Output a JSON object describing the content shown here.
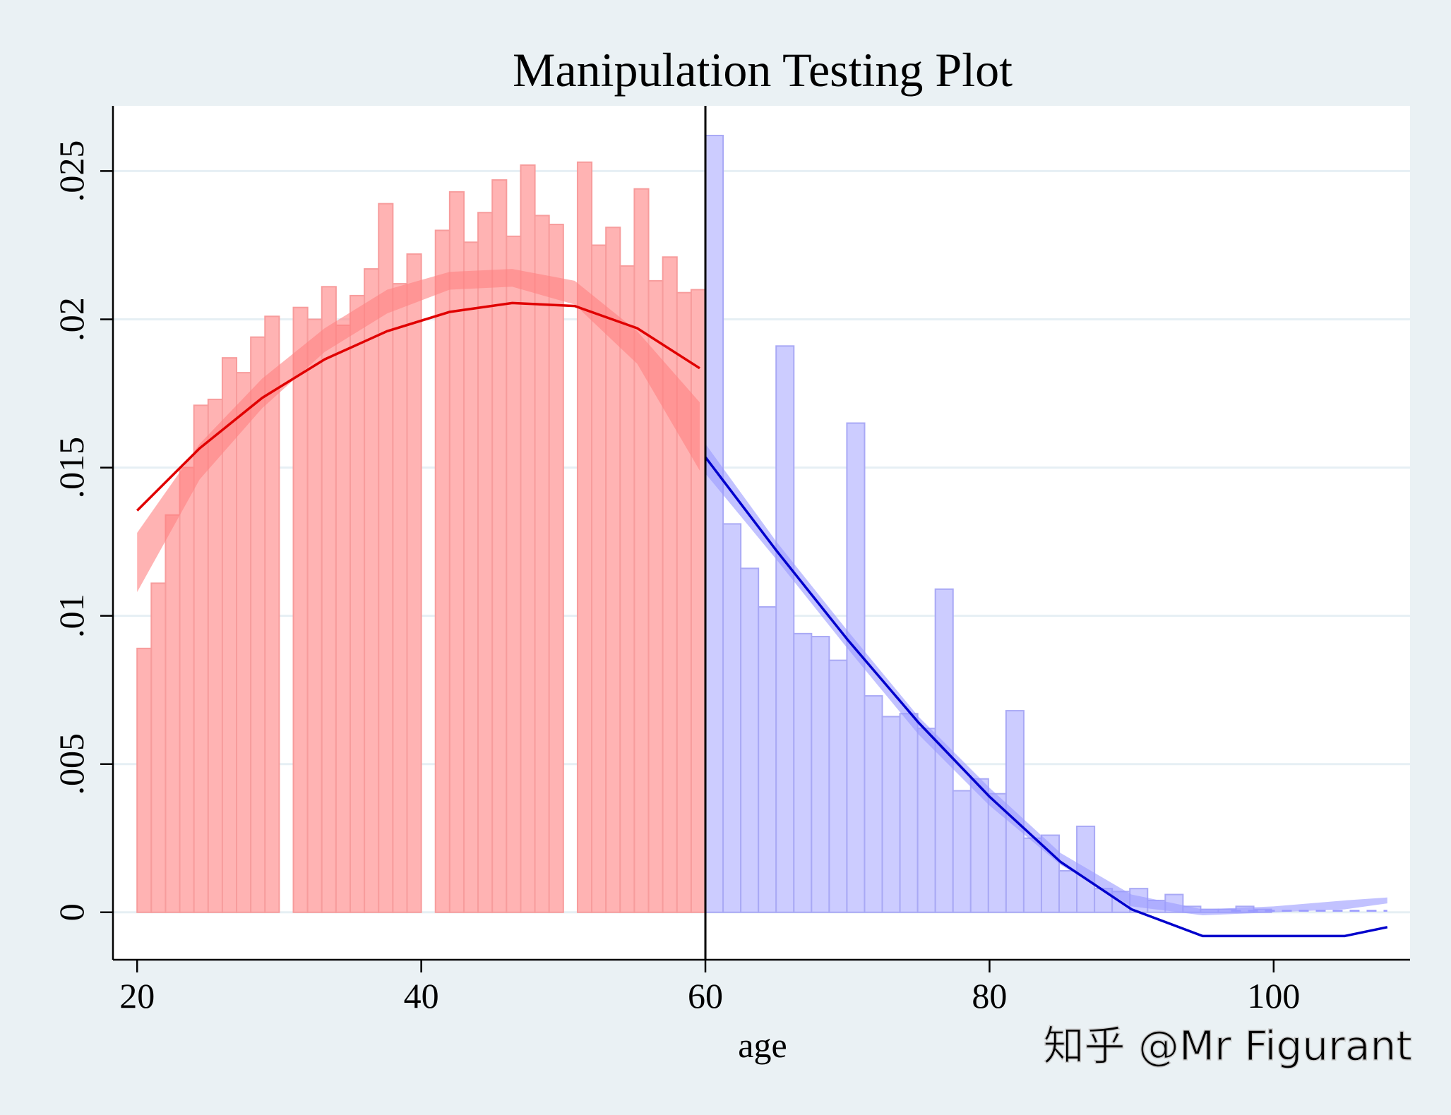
{
  "chart_data": {
    "type": "bar",
    "title": "Manipulation Testing Plot",
    "xlabel": "age",
    "ylabel": "",
    "xlim": [
      18.3,
      109.6
    ],
    "ylim": [
      -0.0016,
      0.0272
    ],
    "cutoff": 60,
    "x_ticks": [
      20,
      40,
      60,
      80,
      100
    ],
    "x_tick_labels": [
      "20",
      "40",
      "60",
      "80",
      "100"
    ],
    "y_ticks": [
      0,
      0.005,
      0.01,
      0.015,
      0.02,
      0.025
    ],
    "y_tick_labels": [
      "0",
      ".005",
      ".01",
      ".015",
      ".02",
      ".025"
    ],
    "grid": true,
    "colors": {
      "left_bar_fill": "#ffb3b3",
      "left_bar_stroke": "#f79c9c",
      "left_band": "#ff8080",
      "left_line": "#e00000",
      "right_bar_fill": "#ccccff",
      "right_bar_stroke": "#a9a9f5",
      "right_band": "#9a9aff",
      "right_line": "#0000cc",
      "grid": "#e6eff4",
      "plot_bg": "#ffffff",
      "outer_bg": "#eaf1f4"
    },
    "series": [
      {
        "side": "left",
        "kind": "histogram",
        "bin_width": 1,
        "x": [
          20,
          21,
          22,
          23,
          24,
          25,
          26,
          27,
          28,
          29,
          30,
          31,
          32,
          33,
          34,
          35,
          36,
          37,
          38,
          39,
          40,
          41,
          42,
          43,
          44,
          45,
          46,
          47,
          48,
          49,
          50,
          51,
          52,
          53,
          54,
          55,
          56,
          57,
          58,
          59
        ],
        "values": [
          0.0089,
          0.0111,
          0.0134,
          0.015,
          0.0171,
          0.0173,
          0.0187,
          0.0182,
          0.0194,
          0.0201,
          0,
          0.0204,
          0.02,
          0.0211,
          0.0198,
          0.0208,
          0.0217,
          0.0239,
          0.0212,
          0.0222,
          0,
          0.023,
          0.0243,
          0.0226,
          0.0236,
          0.0247,
          0.0228,
          0.0252,
          0.0235,
          0.0232,
          0,
          0.0253,
          0.0225,
          0.0231,
          0.0218,
          0.0244,
          0.0213,
          0.0221,
          0.0209,
          0.021
        ]
      },
      {
        "side": "right",
        "kind": "histogram",
        "bin_width": 1.245,
        "x": [
          60,
          61.245,
          62.49,
          63.735,
          64.98,
          66.225,
          67.47,
          68.715,
          69.96,
          71.205,
          72.45,
          73.695,
          74.94,
          76.185,
          77.43,
          78.675,
          79.92,
          81.165,
          82.41,
          83.655,
          84.9,
          86.145,
          87.39,
          88.635,
          89.88,
          91.125,
          92.37,
          93.615,
          94.86,
          96.105,
          97.35,
          98.595
        ],
        "values": [
          0.0262,
          0.0131,
          0.0116,
          0.0103,
          0.0191,
          0.0094,
          0.0093,
          0.0085,
          0.0165,
          0.0073,
          0.0066,
          0.0067,
          0.0062,
          0.0109,
          0.0041,
          0.0045,
          0.004,
          0.0068,
          0.0025,
          0.0026,
          0.0014,
          0.0029,
          0.0008,
          0.0007,
          0.0008,
          0.0004,
          0.0006,
          0.0002,
          0.0001,
          0.0001,
          0.0002,
          0.0001
        ]
      },
      {
        "side": "left",
        "kind": "fit",
        "x": [
          20,
          24.4,
          28.8,
          33.2,
          37.6,
          42,
          46.4,
          50.8,
          55.2,
          59.6
        ],
        "values": [
          0.01355,
          0.01565,
          0.01735,
          0.01865,
          0.0196,
          0.02025,
          0.02055,
          0.02045,
          0.0197,
          0.01835
        ],
        "band_lower": [
          0.0108,
          0.0146,
          0.017,
          0.0189,
          0.0202,
          0.021,
          0.0211,
          0.0205,
          0.0185,
          0.0149
        ],
        "band_upper": [
          0.0128,
          0.0158,
          0.018,
          0.0197,
          0.021,
          0.0216,
          0.0217,
          0.0213,
          0.0196,
          0.0172
        ]
      },
      {
        "side": "right",
        "kind": "fit",
        "x": [
          60,
          65,
          70,
          75,
          80,
          85,
          90,
          95,
          100,
          105,
          108
        ],
        "values": [
          0.01535,
          0.0122,
          0.0092,
          0.0064,
          0.0039,
          0.0017,
          0.0001,
          -0.0008,
          -0.0008,
          -0.0008,
          -0.0005
        ],
        "band_lower": [
          0.0148,
          0.0119,
          0.0089,
          0.006,
          0.0036,
          0.0016,
          0.0002,
          -0.0001,
          0.0,
          0.0001,
          0.0003
        ],
        "band_upper": [
          0.0158,
          0.0125,
          0.0095,
          0.0066,
          0.0042,
          0.002,
          0.0006,
          0.0001,
          0.0002,
          0.0004,
          0.0005
        ]
      }
    ]
  },
  "watermark": "知乎 @Mr Figurant"
}
